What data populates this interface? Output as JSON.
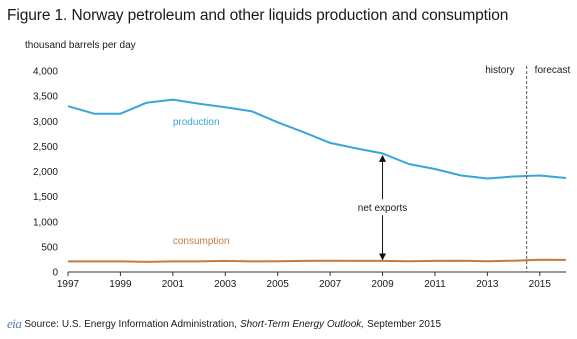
{
  "title": "Figure 1. Norway petroleum and other liquids production and consumption",
  "unit": "thousand barrels per day",
  "source": {
    "logo": "eia",
    "prefix": "Source:",
    "agency": "U.S. Energy Information Administration,",
    "publication": "Short-Term Energy Outlook,",
    "date": "September 2015"
  },
  "colors": {
    "production": "#3aa6d6",
    "consumption": "#c87a3c",
    "axis": "#333333",
    "divider": "#555555"
  },
  "chart_data": {
    "type": "line",
    "x_start": 1997,
    "x_end": 2016,
    "ylim": [
      0,
      4000
    ],
    "yticks": [
      0,
      500,
      1000,
      1500,
      2000,
      2500,
      3000,
      3500,
      4000
    ],
    "ytick_labels": [
      "0",
      "500",
      "1,000",
      "1,500",
      "2,000",
      "2,500",
      "3,000",
      "3,500",
      "4,000"
    ],
    "xticks": [
      1997,
      1999,
      2001,
      2003,
      2005,
      2007,
      2009,
      2011,
      2013,
      2015
    ],
    "grid": false,
    "series": [
      {
        "name": "production",
        "key": "production",
        "x": [
          1997,
          1998,
          1999,
          2000,
          2001,
          2002,
          2003,
          2004,
          2005,
          2006,
          2007,
          2008,
          2009,
          2010,
          2011,
          2012,
          2013,
          2014,
          2015,
          2016
        ],
        "values": [
          3300,
          3150,
          3150,
          3370,
          3430,
          3350,
          3280,
          3200,
          2980,
          2780,
          2570,
          2460,
          2360,
          2150,
          2050,
          1920,
          1860,
          1900,
          1920,
          1870
        ]
      },
      {
        "name": "consumption",
        "key": "consumption",
        "x": [
          1997,
          1998,
          1999,
          2000,
          2001,
          2002,
          2003,
          2004,
          2005,
          2006,
          2007,
          2008,
          2009,
          2010,
          2011,
          2012,
          2013,
          2014,
          2015,
          2016
        ],
        "values": [
          210,
          210,
          210,
          200,
          210,
          210,
          220,
          210,
          215,
          220,
          225,
          220,
          220,
          215,
          220,
          225,
          215,
          225,
          245,
          240
        ]
      }
    ],
    "annotations": {
      "history": "history",
      "forecast": "forecast",
      "divider_x": 2014.5,
      "net_exports": "net exports",
      "net_exports_x": 2009,
      "net_exports_top": 2330,
      "net_exports_bottom": 230,
      "net_exports_label_y": 1250
    },
    "series_labels": [
      {
        "key": "production",
        "text": "production",
        "x": 2001,
        "y": 2930
      },
      {
        "key": "consumption",
        "text": "consumption",
        "x": 2001,
        "y": 560
      }
    ]
  }
}
